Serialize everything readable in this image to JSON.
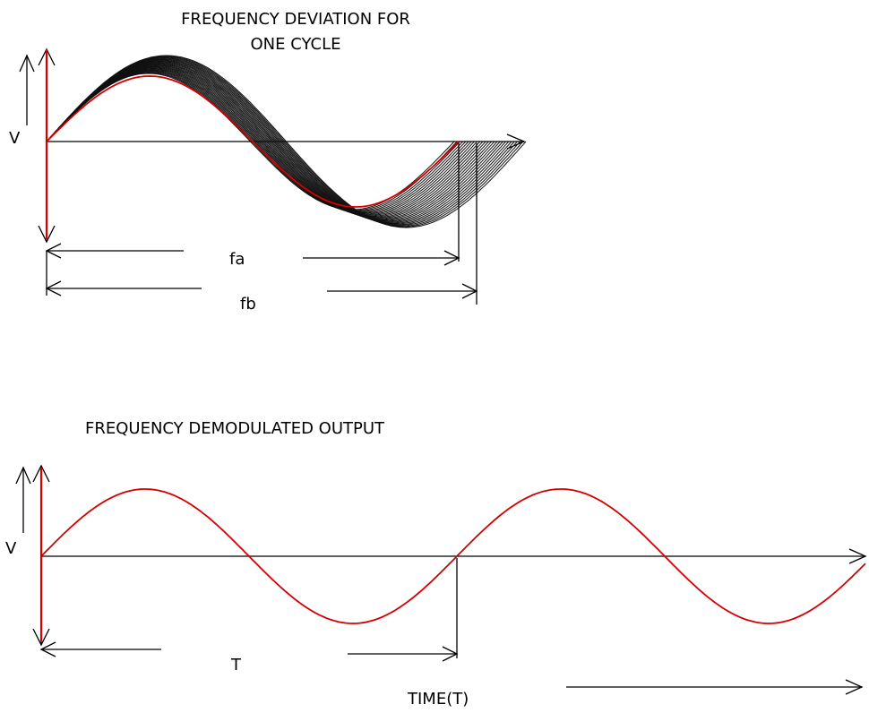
{
  "top_diagram": {
    "title_line1": "FREQUENCY DEVIATION FOR",
    "title_line2": "ONE CYCLE",
    "y_label": "V",
    "dim_fa_label": "fa",
    "dim_fb_label": "fb"
  },
  "bottom_diagram": {
    "title": "FREQUENCY DEMODULATED OUTPUT",
    "y_label": "V",
    "period_label": "T",
    "time_label": "TIME(T)"
  },
  "colors": {
    "signal": "#d40000",
    "axis": "#000000",
    "background": "#ffffff"
  }
}
